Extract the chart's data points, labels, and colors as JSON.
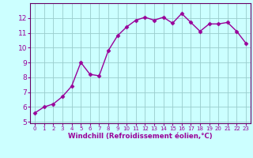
{
  "x": [
    0,
    1,
    2,
    3,
    4,
    5,
    6,
    7,
    8,
    9,
    10,
    11,
    12,
    13,
    14,
    15,
    16,
    17,
    18,
    19,
    20,
    21,
    22,
    23
  ],
  "y": [
    5.6,
    6.0,
    6.2,
    6.7,
    7.4,
    9.0,
    8.2,
    8.1,
    9.8,
    10.8,
    11.4,
    11.85,
    12.05,
    11.85,
    12.05,
    11.65,
    12.3,
    11.7,
    11.1,
    11.6,
    11.6,
    11.7,
    11.1,
    10.3
  ],
  "line_color": "#990099",
  "marker": "D",
  "marker_size": 2.5,
  "line_width": 1.0,
  "bg_color": "#ccffff",
  "grid_color": "#99cccc",
  "xlabel": "Windchill (Refroidissement éolien,°C)",
  "xlabel_color": "#990099",
  "tick_color": "#990099",
  "spine_color": "#660066",
  "xlim": [
    -0.5,
    23.5
  ],
  "ylim": [
    4.9,
    13.0
  ],
  "yticks": [
    5,
    6,
    7,
    8,
    9,
    10,
    11,
    12
  ],
  "xticks": [
    0,
    1,
    2,
    3,
    4,
    5,
    6,
    7,
    8,
    9,
    10,
    11,
    12,
    13,
    14,
    15,
    16,
    17,
    18,
    19,
    20,
    21,
    22,
    23
  ],
  "figsize": [
    3.2,
    2.0
  ],
  "dpi": 100
}
